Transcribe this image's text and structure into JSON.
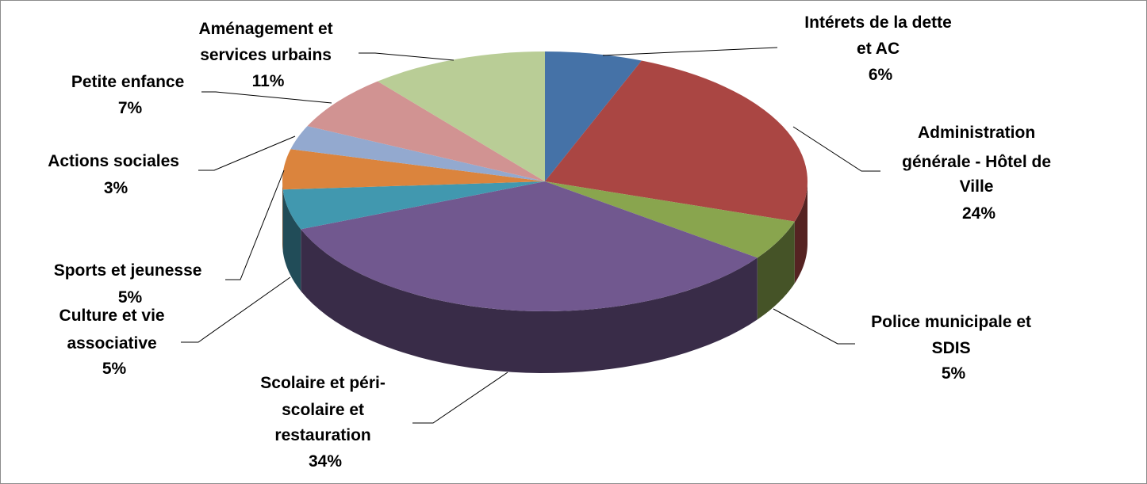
{
  "chart_data": {
    "type": "pie",
    "title": "",
    "style": "3d",
    "slices": [
      {
        "label": "Intérets de la dette et AC",
        "value": 6,
        "value_label": "6%",
        "color": "#4572A7"
      },
      {
        "label": "Administration générale - Hôtel de Ville",
        "value": 24,
        "value_label": "24%",
        "color": "#AA4643"
      },
      {
        "label": "Police municipale et SDIS",
        "value": 5,
        "value_label": "5%",
        "color": "#89A54E"
      },
      {
        "label": "Scolaire et péri-scolaire et restauration",
        "value": 34,
        "value_label": "34%",
        "color": "#71588F"
      },
      {
        "label": "Culture et vie associative",
        "value": 5,
        "value_label": "5%",
        "color": "#4198AF"
      },
      {
        "label": "Sports et jeunesse",
        "value": 5,
        "value_label": "5%",
        "color": "#DB843D"
      },
      {
        "label": "Actions sociales",
        "value": 3,
        "value_label": "3%",
        "color": "#93A9CF"
      },
      {
        "label": "Petite enfance",
        "value": 7,
        "value_label": "7%",
        "color": "#D19392"
      },
      {
        "label": "Aménagement et services urbains",
        "value": 11,
        "value_label": "11%",
        "color": "#B9CD96"
      }
    ]
  }
}
